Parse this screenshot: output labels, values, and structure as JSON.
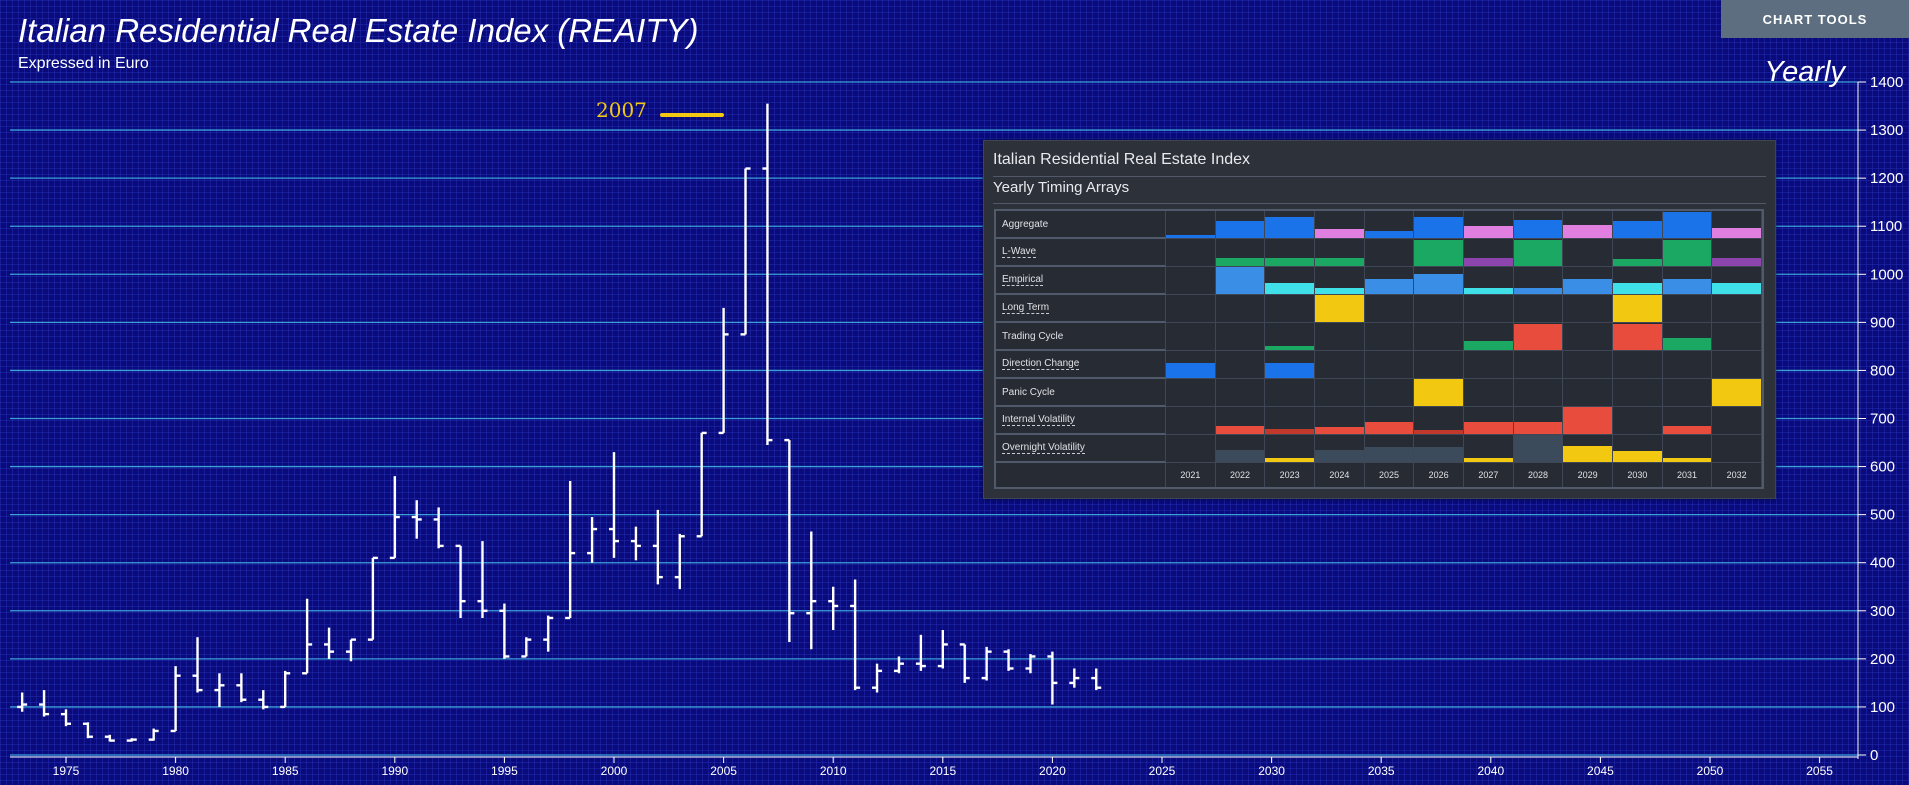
{
  "header": {
    "title": "Italian Residential Real Estate Index (REAITY)",
    "subtitle": "Expressed in Euro",
    "period": "Yearly",
    "tools_button": "CHART TOOLS"
  },
  "annotation": {
    "label": "2007",
    "color": "#f2c811"
  },
  "colors": {
    "background": "#0a0a7a",
    "gridline": "#3aa0d8",
    "bars": "#ffffff",
    "axis_text": "#ffffff"
  },
  "chart_data": {
    "type": "ohlc",
    "title": "Italian Residential Real Estate Index (REAITY)",
    "subtitle": "Expressed in Euro",
    "ylim": [
      0,
      1400
    ],
    "yticks": [
      0,
      100,
      200,
      300,
      400,
      500,
      600,
      700,
      800,
      900,
      1000,
      1100,
      1200,
      1300,
      1400
    ],
    "xlim": [
      1972,
      2057
    ],
    "xticks": [
      1975,
      1980,
      1985,
      1990,
      1995,
      2000,
      2005,
      2010,
      2015,
      2020,
      2025,
      2030,
      2035,
      2040,
      2045,
      2050,
      2055
    ],
    "grid": true,
    "bars": [
      {
        "x": 1973,
        "o": 100,
        "h": 130,
        "l": 90,
        "c": 105
      },
      {
        "x": 1974,
        "o": 105,
        "h": 135,
        "l": 80,
        "c": 85
      },
      {
        "x": 1975,
        "o": 85,
        "h": 95,
        "l": 60,
        "c": 65
      },
      {
        "x": 1976,
        "o": 65,
        "h": 68,
        "l": 35,
        "c": 38
      },
      {
        "x": 1977,
        "o": 38,
        "h": 42,
        "l": 28,
        "c": 30
      },
      {
        "x": 1978,
        "o": 30,
        "h": 35,
        "l": 28,
        "c": 32
      },
      {
        "x": 1979,
        "o": 32,
        "h": 55,
        "l": 30,
        "c": 50
      },
      {
        "x": 1980,
        "o": 50,
        "h": 185,
        "l": 50,
        "c": 165
      },
      {
        "x": 1981,
        "o": 165,
        "h": 245,
        "l": 130,
        "c": 135
      },
      {
        "x": 1982,
        "o": 135,
        "h": 170,
        "l": 100,
        "c": 145
      },
      {
        "x": 1983,
        "o": 145,
        "h": 170,
        "l": 110,
        "c": 115
      },
      {
        "x": 1984,
        "o": 115,
        "h": 135,
        "l": 95,
        "c": 100
      },
      {
        "x": 1985,
        "o": 100,
        "h": 175,
        "l": 100,
        "c": 170
      },
      {
        "x": 1986,
        "o": 170,
        "h": 325,
        "l": 170,
        "c": 230
      },
      {
        "x": 1987,
        "o": 230,
        "h": 265,
        "l": 200,
        "c": 215
      },
      {
        "x": 1988,
        "o": 215,
        "h": 240,
        "l": 195,
        "c": 240
      },
      {
        "x": 1989,
        "o": 240,
        "h": 410,
        "l": 240,
        "c": 410
      },
      {
        "x": 1990,
        "o": 410,
        "h": 580,
        "l": 410,
        "c": 495
      },
      {
        "x": 1991,
        "o": 495,
        "h": 530,
        "l": 450,
        "c": 490
      },
      {
        "x": 1992,
        "o": 490,
        "h": 515,
        "l": 430,
        "c": 435
      },
      {
        "x": 1993,
        "o": 435,
        "h": 435,
        "l": 285,
        "c": 320
      },
      {
        "x": 1994,
        "o": 320,
        "h": 445,
        "l": 285,
        "c": 300
      },
      {
        "x": 1995,
        "o": 300,
        "h": 315,
        "l": 200,
        "c": 205
      },
      {
        "x": 1996,
        "o": 205,
        "h": 245,
        "l": 205,
        "c": 240
      },
      {
        "x": 1997,
        "o": 240,
        "h": 290,
        "l": 215,
        "c": 285
      },
      {
        "x": 1998,
        "o": 285,
        "h": 570,
        "l": 285,
        "c": 420
      },
      {
        "x": 1999,
        "o": 420,
        "h": 495,
        "l": 400,
        "c": 470
      },
      {
        "x": 2000,
        "o": 470,
        "h": 630,
        "l": 410,
        "c": 445
      },
      {
        "x": 2001,
        "o": 445,
        "h": 475,
        "l": 405,
        "c": 435
      },
      {
        "x": 2002,
        "o": 435,
        "h": 510,
        "l": 355,
        "c": 370
      },
      {
        "x": 2003,
        "o": 370,
        "h": 460,
        "l": 345,
        "c": 455
      },
      {
        "x": 2004,
        "o": 455,
        "h": 670,
        "l": 455,
        "c": 670
      },
      {
        "x": 2005,
        "o": 670,
        "h": 930,
        "l": 670,
        "c": 875
      },
      {
        "x": 2006,
        "o": 875,
        "h": 1220,
        "l": 875,
        "c": 1220
      },
      {
        "x": 2007,
        "o": 1220,
        "h": 1355,
        "l": 645,
        "c": 655
      },
      {
        "x": 2008,
        "o": 655,
        "h": 655,
        "l": 235,
        "c": 295
      },
      {
        "x": 2009,
        "o": 295,
        "h": 465,
        "l": 220,
        "c": 320
      },
      {
        "x": 2010,
        "o": 320,
        "h": 350,
        "l": 260,
        "c": 310
      },
      {
        "x": 2011,
        "o": 310,
        "h": 365,
        "l": 135,
        "c": 140
      },
      {
        "x": 2012,
        "o": 140,
        "h": 190,
        "l": 130,
        "c": 175
      },
      {
        "x": 2013,
        "o": 175,
        "h": 205,
        "l": 170,
        "c": 190
      },
      {
        "x": 2014,
        "o": 190,
        "h": 250,
        "l": 175,
        "c": 185
      },
      {
        "x": 2015,
        "o": 185,
        "h": 260,
        "l": 180,
        "c": 230
      },
      {
        "x": 2016,
        "o": 230,
        "h": 230,
        "l": 150,
        "c": 160
      },
      {
        "x": 2017,
        "o": 160,
        "h": 225,
        "l": 155,
        "c": 215
      },
      {
        "x": 2018,
        "o": 215,
        "h": 220,
        "l": 175,
        "c": 180
      },
      {
        "x": 2019,
        "o": 180,
        "h": 210,
        "l": 170,
        "c": 205
      },
      {
        "x": 2020,
        "o": 205,
        "h": 215,
        "l": 105,
        "c": 150
      },
      {
        "x": 2021,
        "o": 150,
        "h": 180,
        "l": 140,
        "c": 160
      },
      {
        "x": 2022,
        "o": 160,
        "h": 180,
        "l": 135,
        "c": 140
      }
    ]
  },
  "timing_panel": {
    "title": "Italian Residential Real Estate Index",
    "subtitle": "Yearly Timing Arrays",
    "years": [
      "2021",
      "2022",
      "2023",
      "2024",
      "2025",
      "2026",
      "2027",
      "2028",
      "2029",
      "2030",
      "2031",
      "2032"
    ],
    "rows": [
      {
        "label": "Aggregate",
        "dotted": false,
        "cells": [
          [
            "#1a73e8",
            0.12
          ],
          [
            "#1a73e8",
            0.62
          ],
          [
            "#1a73e8",
            0.78
          ],
          [
            "#e07fe0",
            0.35
          ],
          [
            "#1a73e8",
            0.25
          ],
          [
            "#1a73e8",
            0.78
          ],
          [
            "#e07fe0",
            0.45
          ],
          [
            "#1a73e8",
            0.65
          ],
          [
            "#e07fe0",
            0.5
          ],
          [
            "#1a73e8",
            0.62
          ],
          [
            "#1a73e8",
            0.95
          ],
          [
            "#e07fe0",
            0.38
          ]
        ]
      },
      {
        "label": "L-Wave",
        "dotted": true,
        "cells": [
          null,
          [
            "#1aa862",
            0.3
          ],
          [
            "#1aa862",
            0.3
          ],
          [
            "#1aa862",
            0.3
          ],
          null,
          [
            "#1aa862",
            0.95
          ],
          [
            "#8e44ad",
            0.3
          ],
          [
            "#1aa862",
            0.95
          ],
          null,
          [
            "#1aa862",
            0.25
          ],
          [
            "#1aa862",
            0.95
          ],
          [
            "#8e44ad",
            0.3
          ]
        ]
      },
      {
        "label": "Empirical",
        "dotted": true,
        "cells": [
          null,
          [
            "#3a8ee6",
            1.0
          ],
          [
            "#40e0e8",
            0.4
          ],
          [
            "#40e0e8",
            0.22
          ],
          [
            "#3a8ee6",
            0.55
          ],
          [
            "#3a8ee6",
            0.75
          ],
          [
            "#40e0e8",
            0.22
          ],
          [
            "#3a8ee6",
            0.22
          ],
          [
            "#3a8ee6",
            0.55
          ],
          [
            "#40e0e8",
            0.4
          ],
          [
            "#3a8ee6",
            0.55
          ],
          [
            "#40e0e8",
            0.4
          ]
        ]
      },
      {
        "label": "Long Term",
        "dotted": true,
        "cells": [
          null,
          null,
          null,
          [
            "#f2c811",
            1.0
          ],
          null,
          null,
          null,
          null,
          null,
          [
            "#f2c811",
            1.0
          ],
          null,
          null
        ]
      },
      {
        "label": "Trading Cycle",
        "dotted": false,
        "cells": [
          null,
          null,
          [
            "#1aa862",
            0.15
          ],
          null,
          null,
          null,
          [
            "#1aa862",
            0.35
          ],
          [
            "#e74c3c",
            0.95
          ],
          null,
          [
            "#e74c3c",
            0.95
          ],
          [
            "#1aa862",
            0.45
          ],
          null
        ]
      },
      {
        "label": "Direction Change",
        "dotted": true,
        "cells": [
          [
            "#1a73e8",
            0.55
          ],
          null,
          [
            "#1a73e8",
            0.55
          ],
          null,
          null,
          null,
          null,
          null,
          null,
          null,
          null,
          null
        ]
      },
      {
        "label": "Panic Cycle",
        "dotted": false,
        "cells": [
          null,
          null,
          null,
          null,
          null,
          [
            "#f2c811",
            1.0
          ],
          null,
          null,
          null,
          null,
          null,
          [
            "#f2c811",
            1.0
          ]
        ]
      },
      {
        "label": "Internal Volatility",
        "dotted": true,
        "cells": [
          null,
          [
            "#e74c3c",
            0.3
          ],
          [
            "#c0392b",
            0.2
          ],
          [
            "#e74c3c",
            0.25
          ],
          [
            "#e74c3c",
            0.45
          ],
          [
            "#c0392b",
            0.15
          ],
          [
            "#e74c3c",
            0.45
          ],
          [
            "#e74c3c",
            0.45
          ],
          [
            "#e74c3c",
            1.0
          ],
          null,
          [
            "#e74c3c",
            0.3
          ],
          null
        ]
      },
      {
        "label": "Overnight Volatility",
        "dotted": true,
        "cells": [
          null,
          [
            "#3c4b5c",
            0.45
          ],
          [
            "#f2c811",
            0.15
          ],
          [
            "#3c4b5c",
            0.45
          ],
          [
            "#3c4b5c",
            0.55
          ],
          [
            "#3c4b5c",
            0.55
          ],
          [
            "#f2c811",
            0.15
          ],
          [
            "#3c4b5c",
            1.0
          ],
          [
            "#f2c811",
            0.6
          ],
          [
            "#f2c811",
            0.4
          ],
          [
            "#f2c811",
            0.15
          ],
          null
        ]
      }
    ]
  }
}
